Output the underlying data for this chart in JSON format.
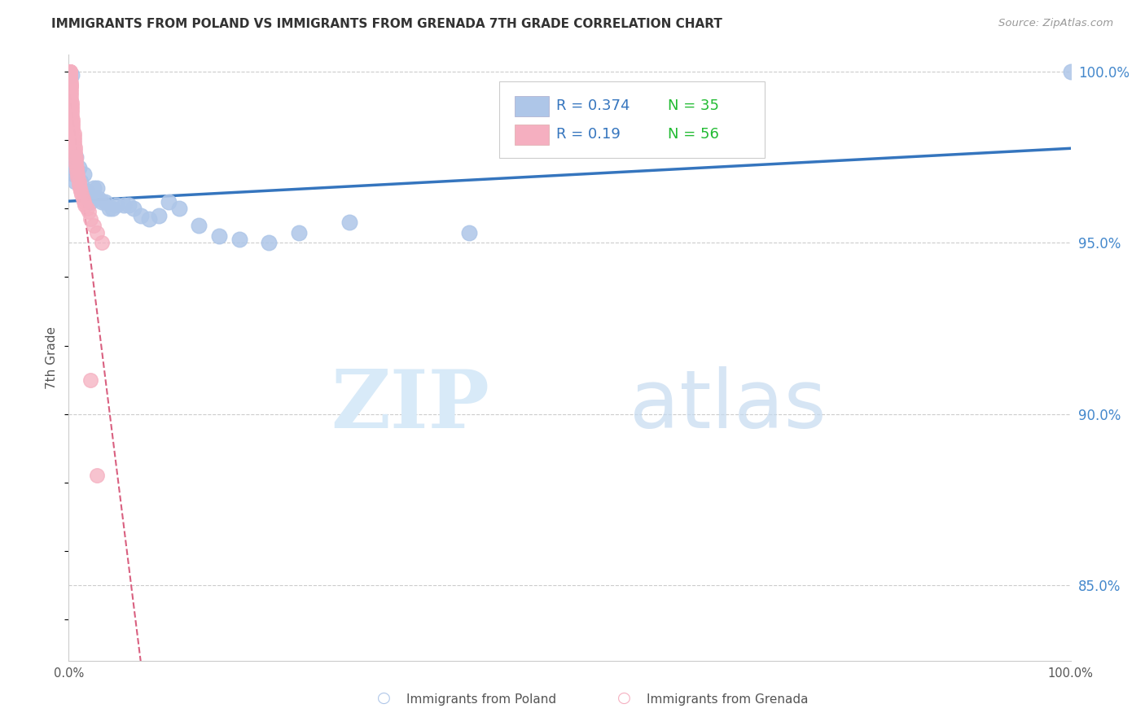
{
  "title": "IMMIGRANTS FROM POLAND VS IMMIGRANTS FROM GRENADA 7TH GRADE CORRELATION CHART",
  "source": "Source: ZipAtlas.com",
  "ylabel": "7th Grade",
  "xlim": [
    0.0,
    1.0
  ],
  "ylim": [
    0.828,
    1.005
  ],
  "y_tick_positions": [
    0.85,
    0.9,
    0.95,
    1.0
  ],
  "poland_R": 0.374,
  "poland_N": 35,
  "grenada_R": 0.19,
  "grenada_N": 56,
  "poland_color": "#aec6e8",
  "grenada_color": "#f5afc0",
  "poland_line_color": "#3575be",
  "grenada_line_color": "#d96080",
  "legend_R_color": "#3575be",
  "legend_N_color": "#22bb33",
  "background_color": "#ffffff",
  "grid_color": "#cccccc",
  "poland_x": [
    0.003,
    0.003,
    0.005,
    0.006,
    0.007,
    0.01,
    0.012,
    0.015,
    0.018,
    0.02,
    0.022,
    0.025,
    0.028,
    0.03,
    0.033,
    0.036,
    0.04,
    0.044,
    0.048,
    0.055,
    0.06,
    0.065,
    0.072,
    0.08,
    0.09,
    0.1,
    0.11,
    0.13,
    0.15,
    0.17,
    0.2,
    0.23,
    0.28,
    0.4,
    1.0
  ],
  "poland_y": [
    0.999,
    0.972,
    0.97,
    0.968,
    0.975,
    0.972,
    0.968,
    0.97,
    0.965,
    0.963,
    0.962,
    0.966,
    0.966,
    0.963,
    0.962,
    0.962,
    0.96,
    0.96,
    0.961,
    0.961,
    0.961,
    0.96,
    0.958,
    0.957,
    0.958,
    0.962,
    0.96,
    0.955,
    0.952,
    0.951,
    0.95,
    0.953,
    0.956,
    0.953,
    1.0
  ],
  "grenada_x": [
    0.001,
    0.001,
    0.001,
    0.001,
    0.001,
    0.001,
    0.001,
    0.001,
    0.001,
    0.001,
    0.002,
    0.002,
    0.002,
    0.002,
    0.002,
    0.002,
    0.002,
    0.003,
    0.003,
    0.003,
    0.003,
    0.003,
    0.004,
    0.004,
    0.004,
    0.004,
    0.005,
    0.005,
    0.005,
    0.005,
    0.006,
    0.006,
    0.006,
    0.007,
    0.007,
    0.007,
    0.008,
    0.008,
    0.009,
    0.009,
    0.01,
    0.01,
    0.011,
    0.012,
    0.013,
    0.014,
    0.015,
    0.016,
    0.018,
    0.02,
    0.022,
    0.025,
    0.028,
    0.033,
    0.022,
    0.028
  ],
  "grenada_y": [
    1.0,
    1.0,
    1.0,
    1.0,
    1.0,
    0.999,
    0.999,
    0.998,
    0.998,
    0.997,
    0.997,
    0.996,
    0.996,
    0.995,
    0.994,
    0.993,
    0.992,
    0.991,
    0.99,
    0.989,
    0.988,
    0.987,
    0.986,
    0.985,
    0.984,
    0.983,
    0.982,
    0.981,
    0.98,
    0.979,
    0.978,
    0.977,
    0.976,
    0.975,
    0.974,
    0.973,
    0.972,
    0.971,
    0.97,
    0.969,
    0.968,
    0.967,
    0.966,
    0.965,
    0.964,
    0.963,
    0.962,
    0.961,
    0.96,
    0.959,
    0.957,
    0.955,
    0.953,
    0.95,
    0.91,
    0.882
  ]
}
